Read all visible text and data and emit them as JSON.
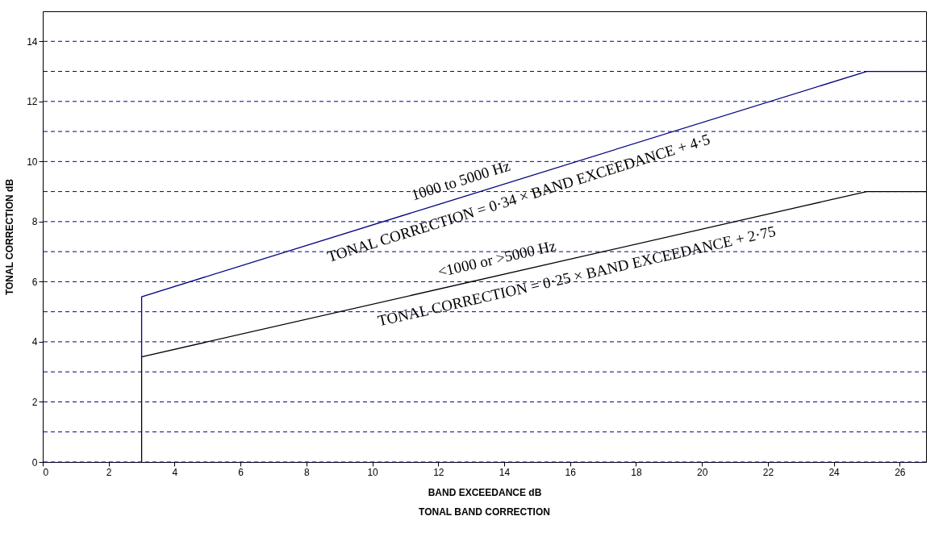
{
  "chart_data": {
    "type": "line",
    "title": "TONAL BAND CORRECTION",
    "xlabel": "BAND EXCEEDANCE dB",
    "ylabel": "TONAL CORRECTION dB",
    "series": [
      {
        "color": "#000080",
        "x": [
          3,
          3,
          25,
          26.8
        ],
        "values": [
          3.5,
          5.5,
          13,
          13
        ]
      },
      {
        "color": "#000000",
        "x": [
          3,
          3,
          25,
          26.8
        ],
        "values": [
          0,
          3.5,
          9,
          9
        ]
      }
    ],
    "annotations": [
      "1000 to 5000 Hz",
      "TONAL CORRECTION = 0·34 × BAND EXCEEDANCE + 4·5",
      "<1000 or >5000 Hz",
      "TONAL CORRECTION = 0·25 × BAND EXCEEDANCE + 2·75"
    ],
    "xlim": [
      0,
      26.8
    ],
    "ylim": [
      0,
      15
    ],
    "xticks": [
      0,
      2,
      4,
      6,
      8,
      10,
      12,
      14,
      16,
      18,
      20,
      22,
      24,
      26
    ],
    "yticks": [
      0,
      {
        "value": 1,
        "label": null
      },
      2,
      {
        "value": 3,
        "label": null
      },
      4,
      {
        "value": 5,
        "label": null
      },
      6,
      {
        "value": 7,
        "label": null
      },
      8,
      {
        "value": 9,
        "label": null
      },
      10,
      {
        "value": 11,
        "label": null
      },
      12,
      {
        "value": 13,
        "label": null
      },
      14
    ],
    "grid": "y",
    "legend": false,
    "marker": "none",
    "line_style": "solid"
  }
}
